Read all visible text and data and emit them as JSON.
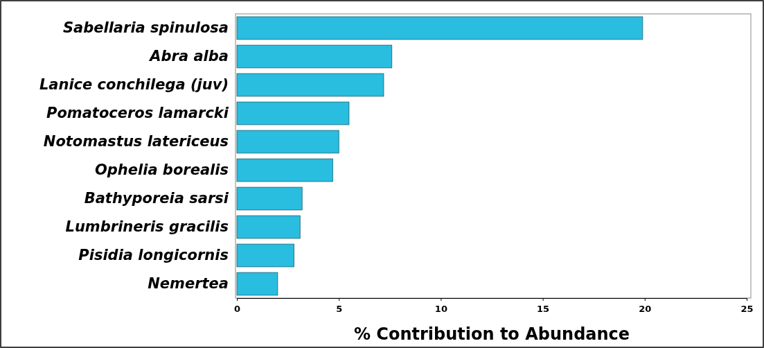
{
  "chart_data": {
    "type": "bar",
    "orientation": "horizontal",
    "xlabel": "% Contribution to Abundance",
    "categories": [
      "Sabellaria spinulosa",
      "Abra alba",
      "Lanice conchilega (juv)",
      "Pomatoceros lamarcki",
      "Notomastus latericeus",
      "Ophelia borealis",
      "Bathyporeia sarsi",
      "Lumbrineris gracilis",
      "Pisidia longicornis",
      "Nemertea"
    ],
    "values": [
      19.9,
      7.6,
      7.2,
      5.5,
      5.0,
      4.7,
      3.2,
      3.1,
      2.8,
      2.0
    ],
    "color": "#29bde0",
    "xlim": [
      0,
      25
    ],
    "xticks": [
      0,
      5,
      10,
      15,
      20,
      25
    ]
  }
}
